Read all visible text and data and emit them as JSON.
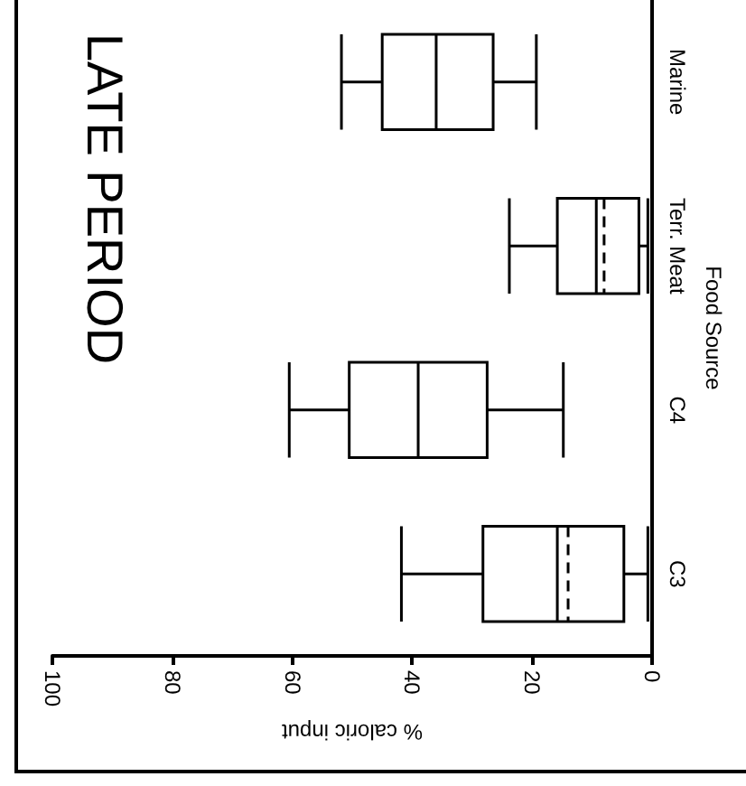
{
  "chart_data": {
    "type": "box",
    "title": "LATE PERIOD",
    "xlabel": "% caloric input",
    "ylabel": "Food Source",
    "orientation": "horizontal",
    "categories": [
      "Marine",
      "Terr. Meat",
      "C4",
      "C3"
    ],
    "color": "#000000",
    "boxes": [
      {
        "low": 19.3,
        "q1": 26.5,
        "median": 36,
        "q3": 45,
        "high": 51.8
      },
      {
        "low": 0.7,
        "q1": 2.2,
        "median": 9.3,
        "q3": 15.8,
        "high": 23.8,
        "mean": 8
      },
      {
        "low": 14.8,
        "q1": 27.5,
        "median": 39,
        "q3": 50.5,
        "high": 60.5
      },
      {
        "low": 0.7,
        "q1": 4.7,
        "median": 15.8,
        "q3": 28.2,
        "high": 41.8,
        "mean": 14
      }
    ],
    "xlim": [
      100,
      0
    ],
    "xticks": [
      0,
      20,
      40,
      60,
      80,
      100
    ],
    "grid": false
  }
}
